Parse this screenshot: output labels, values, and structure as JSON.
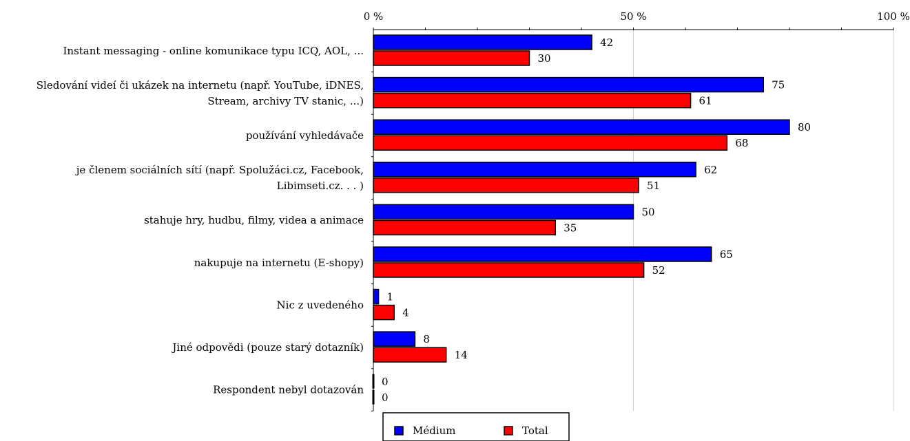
{
  "chart_data": {
    "type": "bar",
    "orientation": "horizontal",
    "xlim": [
      0,
      100
    ],
    "x_ticks": [
      "0 %",
      "50 %",
      "100 %"
    ],
    "x_tick_values": [
      0,
      50,
      100
    ],
    "grid": true,
    "legend_position": "bottom-center",
    "categories": [
      [
        "Instant messaging - online komunikace typu ICQ, AOL, ..."
      ],
      [
        "Sledování videí či ukázek na internetu (např. YouTube, iDNES,",
        "Stream, archivy TV stanic, ...)"
      ],
      [
        "používání vyhledávače"
      ],
      [
        "je členem sociálních sítí (např. Spolužáci.cz, Facebook,",
        "Libimseti.cz. . . )"
      ],
      [
        "stahuje hry, hudbu, filmy, videa a animace"
      ],
      [
        "nakupuje na internetu (E-shopy)"
      ],
      [
        "Nic z uvedeného"
      ],
      [
        "Jiné odpovědi (pouze starý dotazník)"
      ],
      [
        "Respondent nebyl dotazován"
      ]
    ],
    "series": [
      {
        "name": "Médium",
        "color": "#0000ff",
        "values": [
          42,
          75,
          80,
          62,
          50,
          65,
          1,
          8,
          0
        ]
      },
      {
        "name": "Total",
        "color": "#ff0000",
        "values": [
          30,
          61,
          68,
          51,
          35,
          52,
          4,
          14,
          0
        ]
      }
    ]
  }
}
